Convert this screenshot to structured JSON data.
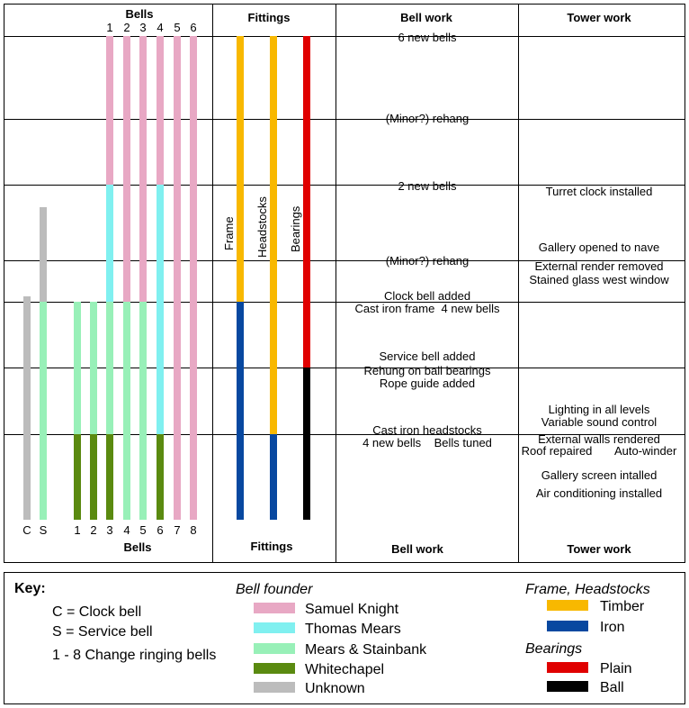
{
  "headers": {
    "bells_top": "Bells",
    "bells_bottom": "Bells",
    "fittings_top": "Fittings",
    "fittings_bottom": "Fittings",
    "bellwork_top": "Bell work",
    "bellwork_bottom": "Bell work",
    "towerwork_top": "Tower work",
    "towerwork_bottom": "Tower work"
  },
  "bell_numbers_top": [
    "1",
    "2",
    "3",
    "4",
    "5",
    "6"
  ],
  "bell_labels_bottom": [
    "C",
    "S",
    "1",
    "2",
    "3",
    "4",
    "5",
    "6",
    "7",
    "8"
  ],
  "fitting_labels": [
    "Frame",
    "Headstocks",
    "Bearings"
  ],
  "colors": {
    "Samuel Knight": "#e8a8c4",
    "Thomas Mears": "#80f0f0",
    "Mears & Stainbank": "#98f0b8",
    "Whitechapel": "#5a8a10",
    "Unknown": "#bcbcbc",
    "Timber": "#f8b800",
    "Iron": "#0848a0",
    "Plain": "#e00000",
    "Ball": "#000000"
  },
  "bell_bars": [
    {
      "label": "C",
      "segments": [
        {
          "from_row": 3.55,
          "to_row": 7.3,
          "founder": "Unknown"
        }
      ]
    },
    {
      "label": "S",
      "segments": [
        {
          "from_row": 2.3,
          "to_row": 4.0,
          "founder": "Unknown"
        },
        {
          "from_row": 4.0,
          "to_row": 7.3,
          "founder": "Mears & Stainbank"
        }
      ]
    },
    {
      "label": "1",
      "segments": [
        {
          "from_row": 4.0,
          "to_row": 6.0,
          "founder": "Mears & Stainbank"
        },
        {
          "from_row": 6.0,
          "to_row": 7.3,
          "founder": "Whitechapel"
        }
      ]
    },
    {
      "label": "2",
      "segments": [
        {
          "from_row": 4.0,
          "to_row": 6.0,
          "founder": "Mears & Stainbank"
        },
        {
          "from_row": 6.0,
          "to_row": 7.3,
          "founder": "Whitechapel"
        }
      ]
    },
    {
      "label": "3",
      "segments": [
        {
          "from_row": 0,
          "to_row": 2.0,
          "founder": "Samuel Knight"
        },
        {
          "from_row": 2.0,
          "to_row": 4.0,
          "founder": "Thomas Mears"
        },
        {
          "from_row": 4.0,
          "to_row": 6.0,
          "founder": "Mears & Stainbank"
        },
        {
          "from_row": 6.0,
          "to_row": 7.3,
          "founder": "Whitechapel"
        }
      ]
    },
    {
      "label": "4",
      "segments": [
        {
          "from_row": 0,
          "to_row": 4.0,
          "founder": "Samuel Knight"
        },
        {
          "from_row": 4.0,
          "to_row": 7.3,
          "founder": "Mears & Stainbank"
        }
      ]
    },
    {
      "label": "5",
      "segments": [
        {
          "from_row": 0,
          "to_row": 4.0,
          "founder": "Samuel Knight"
        },
        {
          "from_row": 4.0,
          "to_row": 7.3,
          "founder": "Mears & Stainbank"
        }
      ]
    },
    {
      "label": "6",
      "segments": [
        {
          "from_row": 0,
          "to_row": 2.0,
          "founder": "Samuel Knight"
        },
        {
          "from_row": 2.0,
          "to_row": 6.0,
          "founder": "Thomas Mears"
        },
        {
          "from_row": 6.0,
          "to_row": 7.3,
          "founder": "Whitechapel"
        }
      ]
    },
    {
      "label": "7",
      "segments": [
        {
          "from_row": 0,
          "to_row": 7.3,
          "founder": "Samuel Knight"
        }
      ]
    },
    {
      "label": "8",
      "segments": [
        {
          "from_row": 0,
          "to_row": 7.3,
          "founder": "Samuel Knight"
        }
      ]
    }
  ],
  "fitting_bars": [
    {
      "label": "Frame",
      "segments": [
        {
          "from_row": 0,
          "to_row": 4.0,
          "material": "Timber"
        },
        {
          "from_row": 4.0,
          "to_row": 7.3,
          "material": "Iron"
        }
      ]
    },
    {
      "label": "Headstocks",
      "segments": [
        {
          "from_row": 0,
          "to_row": 6.0,
          "material": "Timber"
        },
        {
          "from_row": 6.0,
          "to_row": 7.3,
          "material": "Iron"
        }
      ]
    },
    {
      "label": "Bearings",
      "segments": [
        {
          "from_row": 0,
          "to_row": 5.0,
          "material": "Plain"
        },
        {
          "from_row": 5.0,
          "to_row": 7.3,
          "material": "Ball"
        }
      ]
    }
  ],
  "bell_work": [
    {
      "row": 0,
      "lines": [
        "6 new bells"
      ]
    },
    {
      "row": 1,
      "lines": [
        "(Minor?) rehang"
      ]
    },
    {
      "row": 2,
      "lines": [
        "2 new bells"
      ]
    },
    {
      "row": 3,
      "lines": [
        "(Minor?) rehang"
      ]
    },
    {
      "row": 4,
      "lines": [
        "Clock bell added",
        "Cast iron frame  4 new bells"
      ]
    },
    {
      "row": 5,
      "lines": [
        "Service bell added",
        "Rehung on ball bearings",
        "Rope guide added"
      ]
    },
    {
      "row": 6,
      "lines": [
        "Cast iron headstocks",
        "4 new bells    Bells tuned"
      ]
    }
  ],
  "tower_work": [
    {
      "row": 2,
      "lines": [
        "Turret clock installed"
      ]
    },
    {
      "row": 3,
      "lines": [
        "Gallery opened to nave",
        "External render removed",
        "Stained glass west window"
      ]
    },
    {
      "row": 6,
      "lines": [
        "Lighting in all levels",
        "Variable sound control",
        "External walls rendered",
        "Roof repaired       Auto-winder",
        "Gallery screen intalled",
        "Air conditioning installed"
      ]
    }
  ],
  "key": {
    "title": "Key:",
    "definitions": [
      "C = Clock bell",
      "S = Service bell",
      "1 - 8 Change ringing bells"
    ],
    "founder_heading": "Bell founder",
    "founders": [
      "Samuel Knight",
      "Thomas Mears",
      "Mears & Stainbank",
      "Whitechapel",
      "Unknown"
    ],
    "frame_heading": "Frame, Headstocks",
    "frame_materials": [
      "Timber",
      "Iron"
    ],
    "bearings_heading": "Bearings",
    "bearing_types": [
      "Plain",
      "Ball"
    ]
  }
}
